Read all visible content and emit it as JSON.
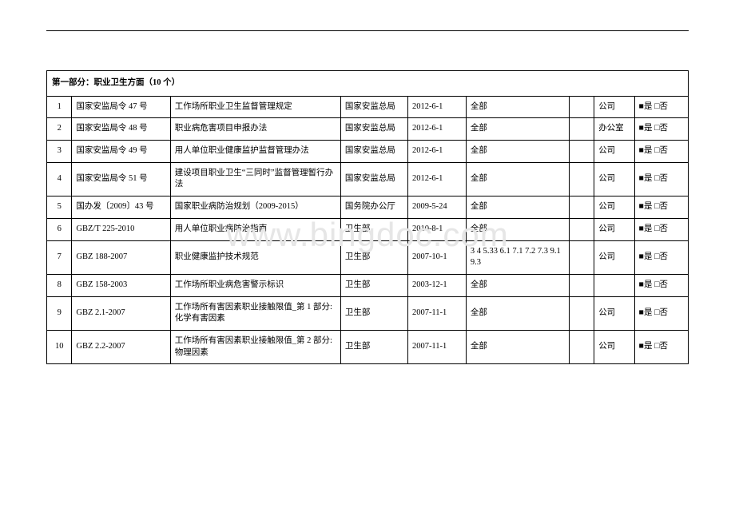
{
  "header_rule_color": "#000000",
  "watermark": "www.bingdoc.com",
  "section_title": "第一部分：职业卫生方面（10 个）",
  "columns": {
    "idx_width": 28,
    "code_width": 110,
    "title_width": 190,
    "org_width": 75,
    "date_width": 65,
    "scope_width": 115,
    "blank_width": 28,
    "dept_width": 45,
    "yn_width": 60
  },
  "yes_no": {
    "yes_filled": "■是",
    "no_empty": "□否"
  },
  "rows": [
    {
      "idx": "1",
      "code": "国家安监局令 47 号",
      "title": "工作场所职业卫生监督管理规定",
      "org": "国家安监总局",
      "date": "2012-6-1",
      "scope": "全部",
      "blank": "",
      "dept": "公司",
      "yn": "■是 □否"
    },
    {
      "idx": "2",
      "code": "国家安监局令 48 号",
      "title": "职业病危害项目申报办法",
      "org": "国家安监总局",
      "date": "2012-6-1",
      "scope": "全部",
      "blank": "",
      "dept": "办公室",
      "yn": "■是 □否"
    },
    {
      "idx": "3",
      "code": "国家安监局令 49 号",
      "title": "用人单位职业健康监护监督管理办法",
      "org": "国家安监总局",
      "date": "2012-6-1",
      "scope": "全部",
      "blank": "",
      "dept": "公司",
      "yn": "■是 □否"
    },
    {
      "idx": "4",
      "code": "国家安监局令 51 号",
      "title": "建设项目职业卫生“三同时”监督管理暂行办法",
      "org": "国家安监总局",
      "date": "2012-6-1",
      "scope": "全部",
      "blank": "",
      "dept": "公司",
      "yn": "■是 □否"
    },
    {
      "idx": "5",
      "code": "国办发〔2009〕43 号",
      "title": "国家职业病防治规划（2009-2015）",
      "org": "国务院办公厅",
      "date": "2009-5-24",
      "scope": "全部",
      "blank": "",
      "dept": "公司",
      "yn": "■是 □否"
    },
    {
      "idx": "6",
      "code": "GBZ/T 225-2010",
      "title": "用人单位职业病防治指南",
      "org": "卫生部",
      "date": "2010-8-1",
      "scope": "全部",
      "blank": "",
      "dept": "公司",
      "yn": "■是 □否"
    },
    {
      "idx": "7",
      "code": "GBZ 188-2007",
      "title": "职业健康监护技术规范",
      "org": "卫生部",
      "date": "2007-10-1",
      "scope": "3 4 5.33 6.1 7.1 7.2 7.3 9.1 9.3",
      "blank": "",
      "dept": "公司",
      "yn": "■是 □否"
    },
    {
      "idx": "8",
      "code": "GBZ 158-2003",
      "title": "工作场所职业病危害警示标识",
      "org": "卫生部",
      "date": "2003-12-1",
      "scope": "全部",
      "blank": "",
      "dept": "",
      "yn": "■是 □否"
    },
    {
      "idx": "9",
      "code": "GBZ 2.1-2007",
      "title": "工作场所有害因素职业接触限值_第 1 部分:化学有害因素",
      "org": "卫生部",
      "date": "2007-11-1",
      "scope": "全部",
      "blank": "",
      "dept": "公司",
      "yn": "■是 □否"
    },
    {
      "idx": "10",
      "code": "GBZ 2.2-2007",
      "title": "工作场所有害因素职业接触限值_第 2 部分:物理因素",
      "org": "卫生部",
      "date": "2007-11-1",
      "scope": "全部",
      "blank": "",
      "dept": "公司",
      "yn": "■是 □否"
    }
  ]
}
